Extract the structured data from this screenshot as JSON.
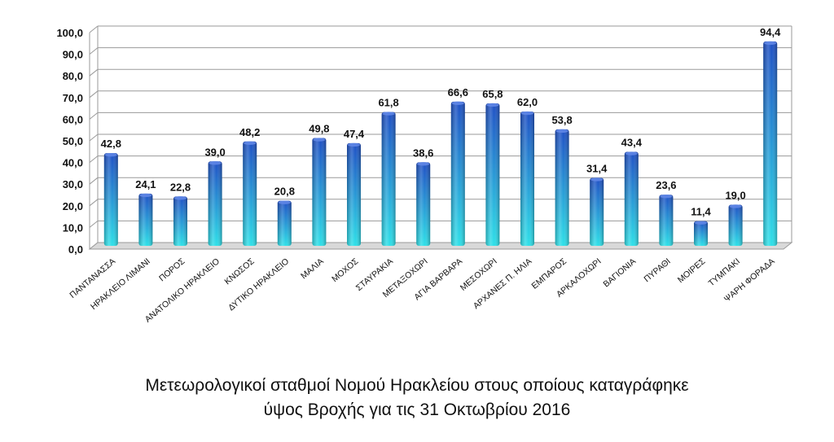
{
  "chart_data": {
    "type": "bar",
    "categories": [
      "ΠΑΝΤΑΝΑΣΣΑ",
      "ΗΡΑΚΛΕΙΟ ΛΙΜΑΝΙ",
      "ΠΟΡΟΣ",
      "ΑΝΑΤΟΛΙΚΟ ΗΡΑΚΛΕΙΟ",
      "ΚΝΩΣΟΣ",
      "ΔΥΤΙΚΟ ΗΡΑΚΛΕΙΟ",
      "ΜΑΛΙΑ",
      "ΜΟΧΟΣ",
      "ΣΤΑΥΡΑΚΙΑ",
      "ΜΕΤΑΞΟΧΩΡΙ",
      "ΑΓΙΑ ΒΑΡΒΑΡΑ",
      "ΜΕΣΟΧΩΡΙ",
      "ΑΡΧΑΝΕΣ Π. ΗΛΙΑ",
      "ΕΜΠΑΡΟΣ",
      "ΑΡΚΑΛΟΧΩΡΙ",
      "ΒΑΓΙΟΝΙΑ",
      "ΠΥΡΑΘΙ",
      "ΜΟΙΡΕΣ",
      "ΤΥΜΠΑΚΙ",
      "ΨΑΡΗ ΦΟΡΑΔΑ"
    ],
    "values": [
      42.8,
      24.1,
      22.8,
      39.0,
      48.2,
      20.8,
      49.8,
      47.4,
      61.8,
      38.6,
      66.6,
      65.8,
      62.0,
      53.8,
      31.4,
      43.4,
      23.6,
      11.4,
      19.0,
      94.4
    ],
    "value_labels": [
      "42,8",
      "24,1",
      "22,8",
      "39,0",
      "48,2",
      "20,8",
      "49,8",
      "47,4",
      "61,8",
      "38,6",
      "66,6",
      "65,8",
      "62,0",
      "53,8",
      "31,4",
      "43,4",
      "23,6",
      "11,4",
      "19,0",
      "94,4"
    ],
    "ylim": [
      0,
      100
    ],
    "yticks": [
      "0,0",
      "10,0",
      "20,0",
      "30,0",
      "40,0",
      "50,0",
      "60,0",
      "70,0",
      "80,0",
      "90,0",
      "100,0"
    ],
    "grid": true,
    "bar_color_top": "#1f4fc4",
    "bar_color_bottom": "#2ee0e8"
  },
  "caption": {
    "line1": "Μετεωρολογικοί σταθμοί Νομού Ηρακλείου στους οποίους καταγράφηκε",
    "line2": "ύψος Βροχής για τις 31 Οκτωβρίου 2016"
  }
}
